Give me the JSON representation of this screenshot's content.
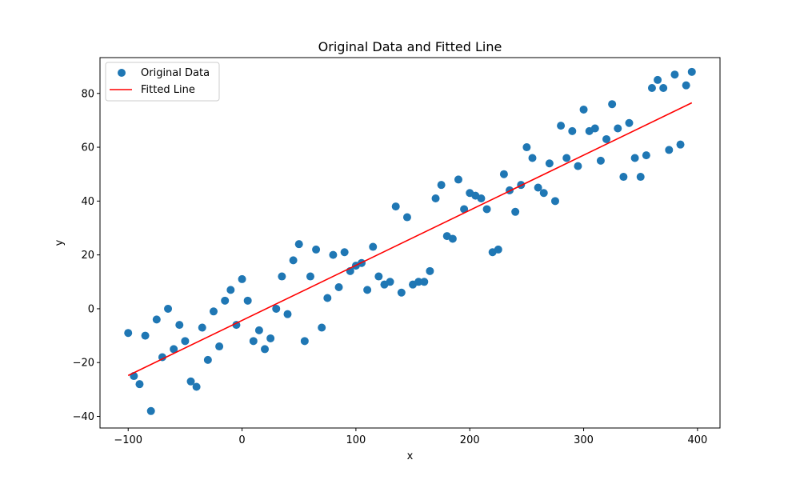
{
  "chart_data": {
    "type": "scatter",
    "title": "Original Data and Fitted Line",
    "xlabel": "x",
    "ylabel": "y",
    "xlim": [
      -124.75,
      419.75
    ],
    "ylim": [
      -44.3,
      93.3
    ],
    "xticks": [
      -100,
      0,
      100,
      200,
      300,
      400
    ],
    "yticks": [
      -40,
      -20,
      0,
      20,
      40,
      60,
      80
    ],
    "grid": false,
    "legend_position": "top-left",
    "series": [
      {
        "name": "Original Data",
        "kind": "scatter",
        "color": "#1f77b4",
        "x": [
          -100,
          -95,
          -90,
          -85,
          -80,
          -75,
          -70,
          -65,
          -60,
          -55,
          -50,
          -45,
          -40,
          -35,
          -30,
          -25,
          -20,
          -15,
          -10,
          -5,
          0,
          5,
          10,
          15,
          20,
          25,
          30,
          35,
          40,
          45,
          50,
          55,
          60,
          65,
          70,
          75,
          80,
          85,
          90,
          95,
          100,
          105,
          110,
          115,
          120,
          125,
          130,
          135,
          140,
          145,
          150,
          155,
          160,
          165,
          170,
          175,
          180,
          185,
          190,
          195,
          200,
          205,
          210,
          215,
          220,
          225,
          230,
          235,
          240,
          245,
          250,
          255,
          260,
          265,
          270,
          275,
          280,
          285,
          290,
          295,
          300,
          305,
          310,
          315,
          320,
          325,
          330,
          335,
          340,
          345,
          350,
          355,
          360,
          365,
          370,
          375,
          380,
          385,
          390,
          395
        ],
        "y": [
          -9,
          -25,
          -28,
          -10,
          -38,
          -4,
          -18,
          0,
          -15,
          -6,
          -12,
          -27,
          -29,
          -7,
          -19,
          -1,
          -14,
          3,
          7,
          -6,
          11,
          3,
          -12,
          -8,
          -15,
          -11,
          0,
          12,
          -2,
          18,
          24,
          -12,
          12,
          22,
          -7,
          4,
          20,
          8,
          21,
          14,
          16,
          17,
          7,
          23,
          12,
          9,
          10,
          38,
          6,
          34,
          9,
          10,
          10,
          14,
          41,
          46,
          27,
          26,
          48,
          37,
          43,
          42,
          41,
          37,
          21,
          22,
          50,
          44,
          36,
          46,
          60,
          56,
          45,
          43,
          54,
          40,
          68,
          56,
          66,
          53,
          74,
          66,
          67,
          55,
          63,
          76,
          67,
          49,
          69,
          56,
          49,
          57,
          82,
          85,
          82,
          59,
          87,
          61,
          83,
          88
        ]
      },
      {
        "name": "Fitted Line",
        "kind": "line",
        "color": "#ff0000",
        "x": [
          -100,
          395
        ],
        "y": [
          -24.8,
          76.5
        ]
      }
    ]
  }
}
